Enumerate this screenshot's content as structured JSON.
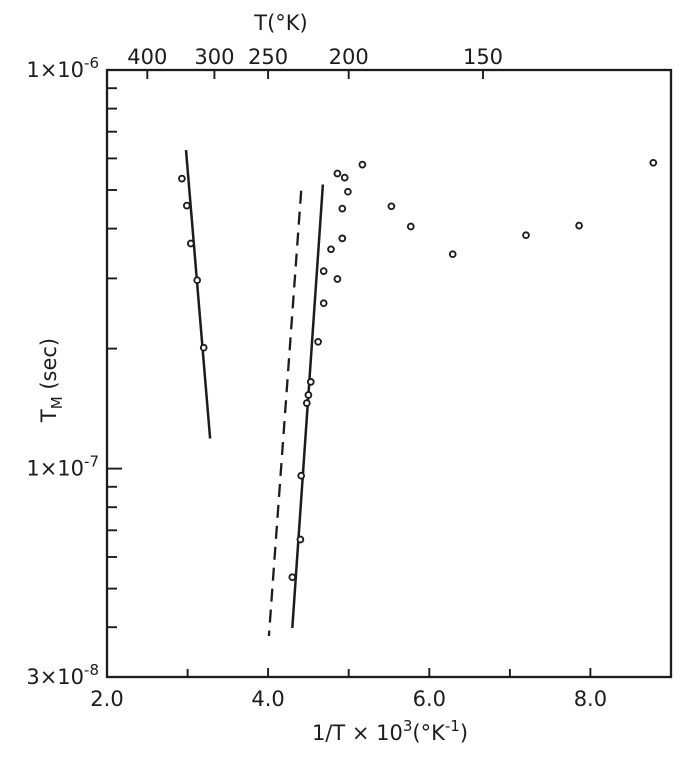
{
  "figure": {
    "background": "#ffffff",
    "ink": "#1c1c1c"
  },
  "chart_data": {
    "type": "scatter",
    "title": "",
    "top_axis": {
      "title": "T(°K)",
      "ticks": [
        {
          "label": "400",
          "T": 400,
          "x": 2.5
        },
        {
          "label": "300",
          "T": 300,
          "x": 3.333
        },
        {
          "label": "250",
          "T": 250,
          "x": 4.0
        },
        {
          "label": "200",
          "T": 200,
          "x": 5.0
        },
        {
          "label": "150",
          "T": 150,
          "x": 6.667
        }
      ]
    },
    "x_axis": {
      "title": [
        {
          "text": "1/T × 10"
        },
        {
          "text": "3",
          "style": "sup"
        },
        {
          "text": "(°K"
        },
        {
          "text": "-1",
          "style": "sup"
        },
        {
          "text": ")"
        }
      ],
      "lim": [
        2.0,
        9.0
      ],
      "labeled_ticks": [
        {
          "label": "2.0",
          "x": 2.0
        },
        {
          "label": "4.0",
          "x": 4.0
        },
        {
          "label": "6.0",
          "x": 6.0
        },
        {
          "label": "8.0",
          "x": 8.0
        }
      ],
      "minor_ticks": [
        3.0,
        5.0,
        7.0
      ]
    },
    "y_axis": {
      "title": [
        {
          "text": "T"
        },
        {
          "text": "M",
          "style": "sub"
        },
        {
          "text": " (sec)"
        }
      ],
      "scale": "log",
      "lim": [
        3e-08,
        1e-06
      ],
      "labeled_ticks": [
        {
          "base": "1×10",
          "exp": "-6",
          "value": 1e-06
        },
        {
          "base": "1×10",
          "exp": "-7",
          "value": 1e-07
        },
        {
          "base": "3×10",
          "exp": "-8",
          "value": 3e-08
        }
      ],
      "minor_ticks": [
        9e-07,
        8e-07,
        7e-07,
        6e-07,
        5e-07,
        4e-07,
        3e-07,
        2e-07,
        9e-08,
        8e-08,
        7e-08,
        6e-08,
        5e-08,
        4e-08
      ]
    },
    "series": [
      {
        "name": "measured-points",
        "type": "scatter",
        "marker": "open-circle",
        "points": [
          [
            2.93,
            5.34e-07
          ],
          [
            2.99,
            4.57e-07
          ],
          [
            3.04,
            3.67e-07
          ],
          [
            3.12,
            2.97e-07
          ],
          [
            3.2,
            2.01e-07
          ],
          [
            4.86,
            5.5e-07
          ],
          [
            4.95,
            5.37e-07
          ],
          [
            5.17,
            5.79e-07
          ],
          [
            4.99,
            4.95e-07
          ],
          [
            4.92,
            4.49e-07
          ],
          [
            4.92,
            3.78e-07
          ],
          [
            4.78,
            3.55e-07
          ],
          [
            4.69,
            3.13e-07
          ],
          [
            4.86,
            2.99e-07
          ],
          [
            4.69,
            2.6e-07
          ],
          [
            4.62,
            2.08e-07
          ],
          [
            4.53,
            1.65e-07
          ],
          [
            4.5,
            1.53e-07
          ],
          [
            4.48,
            1.46e-07
          ],
          [
            4.41,
            9.6e-08
          ],
          [
            4.4,
            6.64e-08
          ],
          [
            4.3,
            5.34e-08
          ],
          [
            5.53,
            4.55e-07
          ],
          [
            5.77,
            4.05e-07
          ],
          [
            6.29,
            3.45e-07
          ],
          [
            7.2,
            3.85e-07
          ],
          [
            7.86,
            4.07e-07
          ],
          [
            8.78,
            5.85e-07
          ]
        ]
      },
      {
        "name": "fit-line-steep",
        "type": "line",
        "dash": "solid",
        "points": [
          [
            2.98,
            6.3e-07
          ],
          [
            3.28,
            1.19e-07
          ]
        ]
      },
      {
        "name": "fit-line-center",
        "type": "line",
        "dash": "solid",
        "points": [
          [
            4.68,
            5.16e-07
          ],
          [
            4.3,
            3.98e-08
          ]
        ]
      },
      {
        "name": "guide-line-dashed",
        "type": "line",
        "dash": "dashed",
        "points": [
          [
            4.41,
            4.98e-07
          ],
          [
            4.01,
            3.8e-08
          ]
        ]
      }
    ]
  }
}
